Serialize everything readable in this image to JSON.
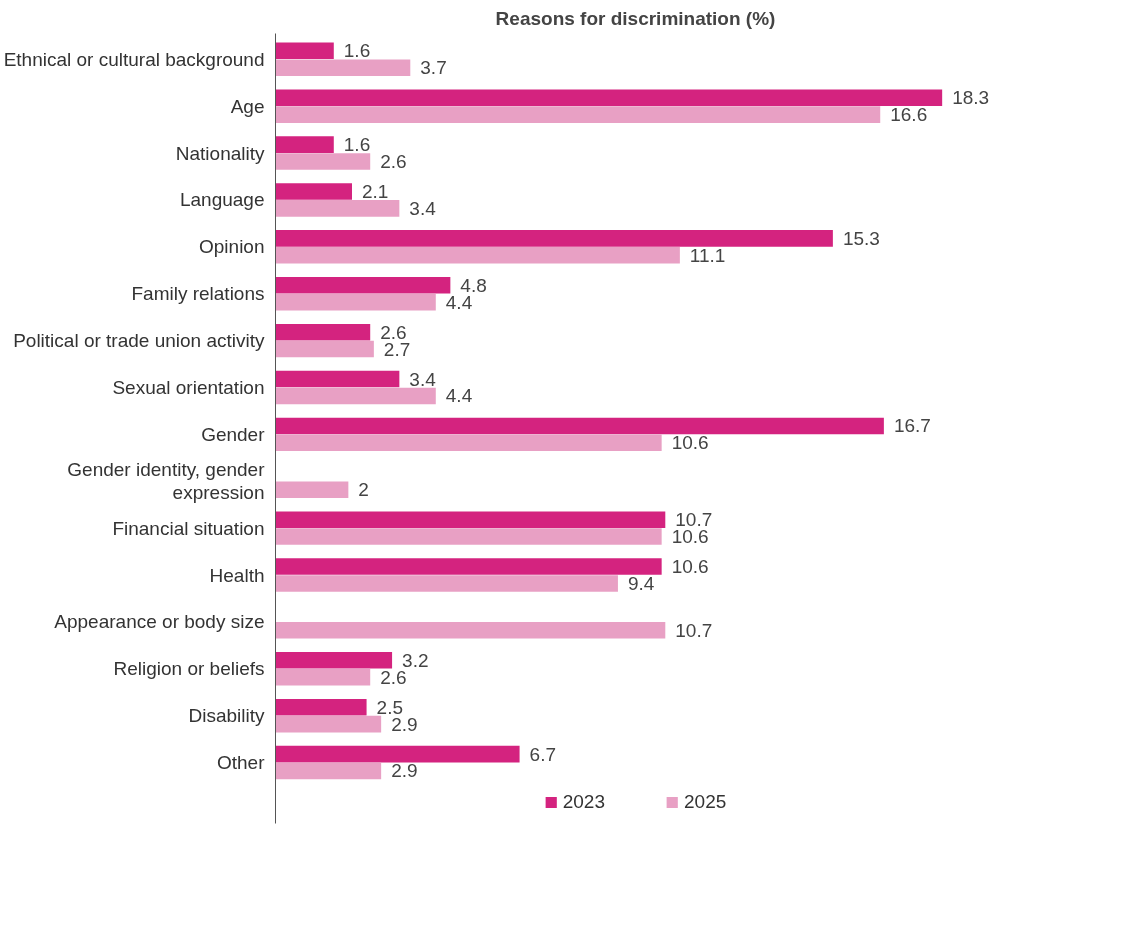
{
  "chart_data": {
    "type": "bar",
    "orientation": "horizontal",
    "title": "Reasons for discrimination (%)",
    "categories": [
      "Ethnical or cultural background",
      "Age",
      "Nationality",
      "Language",
      "Opinion",
      "Family relations",
      "Political or trade union activity",
      "Sexual orientation",
      "Gender",
      "Gender identity, gender expression",
      "Financial situation",
      "Health",
      "Appearance or body size",
      "Religion or beliefs",
      "Disability",
      "Other"
    ],
    "series": [
      {
        "name": "2023",
        "color": "#d4237f",
        "values": [
          1.6,
          18.3,
          1.6,
          2.1,
          15.3,
          4.8,
          2.6,
          3.4,
          16.7,
          null,
          10.7,
          10.6,
          null,
          3.2,
          2.5,
          6.7
        ]
      },
      {
        "name": "2025",
        "color": "#e8a0c4",
        "values": [
          3.7,
          16.6,
          2.6,
          3.4,
          11.1,
          4.4,
          2.7,
          4.4,
          10.6,
          2,
          10.6,
          9.4,
          10.7,
          2.6,
          2.9,
          2.9
        ]
      }
    ],
    "data_labels": true,
    "legend": "bottom",
    "grid": false,
    "tick_labels": "y"
  }
}
